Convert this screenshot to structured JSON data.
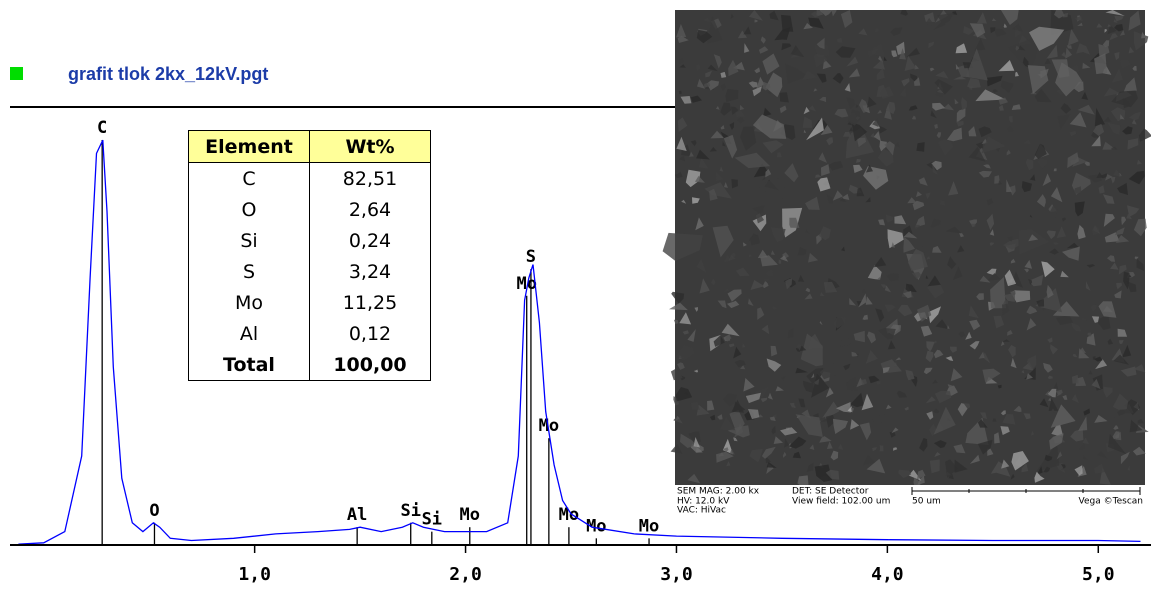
{
  "chart_data": {
    "type": "line",
    "title": "grafit tlok 2kx_12kV.pgt",
    "color": "#0000ff",
    "x": [
      -0.12,
      0.0,
      0.1,
      0.18,
      0.22,
      0.25,
      0.28,
      0.3,
      0.33,
      0.37,
      0.42,
      0.47,
      0.52,
      0.55,
      0.6,
      0.7,
      0.9,
      1.1,
      1.3,
      1.45,
      1.5,
      1.6,
      1.7,
      1.75,
      1.8,
      1.9,
      2.0,
      2.1,
      2.2,
      2.25,
      2.28,
      2.3,
      2.32,
      2.35,
      2.38,
      2.42,
      2.46,
      2.5,
      2.6,
      2.8,
      3.0,
      3.5,
      4.0,
      4.5,
      5.0,
      5.2
    ],
    "values": [
      0.2,
      0.5,
      3,
      20,
      60,
      88,
      91,
      75,
      40,
      15,
      5,
      3,
      5,
      4,
      1.5,
      1,
      1.5,
      2.5,
      3,
      3.5,
      4,
      3,
      4,
      5,
      4,
      3,
      3,
      3,
      5,
      20,
      55,
      60,
      63,
      50,
      30,
      18,
      10,
      7,
      4,
      2.5,
      2,
      1.5,
      1.2,
      1,
      1,
      0.8
    ],
    "xlim": [
      -0.16,
      5.25
    ],
    "ylim": [
      0,
      100
    ],
    "xticks": [
      {
        "value": 1,
        "label": "1,0"
      },
      {
        "value": 2,
        "label": "2,0"
      },
      {
        "value": 3,
        "label": "3,0"
      },
      {
        "value": 4,
        "label": "4,0"
      },
      {
        "value": 5,
        "label": "5,0"
      }
    ],
    "peaks": [
      {
        "label": "C",
        "energy": 0.277,
        "height": 91
      },
      {
        "label": "O",
        "energy": 0.525,
        "height": 5
      },
      {
        "label": "Al",
        "energy": 1.486,
        "height": 4
      },
      {
        "label": "Si",
        "energy": 1.74,
        "height": 5
      },
      {
        "label": "Si",
        "energy": 1.84,
        "height": 3
      },
      {
        "label": "Mo",
        "energy": 2.02,
        "height": 4
      },
      {
        "label": "Mo",
        "energy": 2.29,
        "height": 56
      },
      {
        "label": "S",
        "energy": 2.31,
        "height": 62
      },
      {
        "label": "Mo",
        "energy": 2.395,
        "height": 24
      },
      {
        "label": "Mo",
        "energy": 2.49,
        "height": 4
      },
      {
        "label": "Mo",
        "energy": 2.62,
        "height": 1.5
      },
      {
        "label": "Mo",
        "energy": 2.87,
        "height": 1.5
      }
    ]
  },
  "table": {
    "header": [
      "Element",
      "Wt%"
    ],
    "rows": [
      [
        "C",
        "82,51"
      ],
      [
        "O",
        "2,64"
      ],
      [
        "Si",
        "0,24"
      ],
      [
        "S",
        "3,24"
      ],
      [
        "Mo",
        "11,25"
      ],
      [
        "Al",
        "0,12"
      ],
      [
        "Total",
        "100,00"
      ]
    ]
  },
  "sem_image": {
    "mag": "SEM MAG: 2.00 kx",
    "hv": "HV:  12.0 kV",
    "vac": "VAC: HiVac",
    "det": "DET: SE Detector",
    "view_field": "View field: 102.00 um",
    "scale": "50 um",
    "brand": "Vega ©Tescan"
  }
}
